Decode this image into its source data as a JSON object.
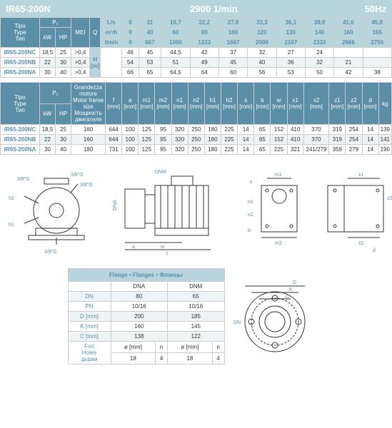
{
  "header": {
    "model": "IR65-200N",
    "rpm": "2900 1/min",
    "hz": "50Hz"
  },
  "table1": {
    "type_labels": [
      "Tipo",
      "Type",
      "Тип"
    ],
    "p2_label": "P₂",
    "kw_label": "kW",
    "hp_label": "HP",
    "mei_label": "MEI",
    "q_label": "Q",
    "ls_label": "L/s",
    "m3h_label": "m³/h",
    "lmin_label": "l/min",
    "hm_label": "H [m]",
    "ls_vals": [
      "0",
      "11",
      "16,7",
      "22,2",
      "27,8",
      "33,3",
      "36,1",
      "38,9",
      "41,6",
      "45,8"
    ],
    "m3h_vals": [
      "0",
      "40",
      "60",
      "80",
      "100",
      "120",
      "130",
      "140",
      "160",
      "165"
    ],
    "lmin_vals": [
      "0",
      "667",
      "1000",
      "1333",
      "1667",
      "2000",
      "2167",
      "2333",
      "2666",
      "2750"
    ],
    "rows": [
      {
        "m": "IR65-200NC",
        "kw": "18,5",
        "hp": "25",
        "mei": ">0,4",
        "v": [
          "46",
          "45",
          "44,5",
          "42",
          "37",
          "32",
          "27",
          "24",
          "",
          ""
        ]
      },
      {
        "m": "IR65-200NB",
        "kw": "22",
        "hp": "30",
        "mei": ">0,4",
        "v": [
          "54",
          "53",
          "51",
          "49",
          "45",
          "40",
          "36",
          "32",
          "21",
          ""
        ]
      },
      {
        "m": "IR65-200NA",
        "kw": "30",
        "hp": "40",
        "mei": ">0,4",
        "v": [
          "66",
          "65",
          "64,5",
          "64",
          "60",
          "56",
          "53",
          "50",
          "42",
          "38"
        ]
      }
    ]
  },
  "table2": {
    "type_labels": [
      "Tipo",
      "Type",
      "Тип"
    ],
    "p2_label": "P₂",
    "kw_label": "kW",
    "hp_label": "HP",
    "motor_labels": [
      "Grandezza motore",
      "Motor frame size",
      "Мощность двигателя"
    ],
    "cols": [
      "f",
      "a",
      "m1",
      "m2",
      "n1",
      "n2",
      "h1",
      "h2",
      "s",
      "b",
      "w",
      "x1",
      "x2",
      "z1",
      "z2",
      "d",
      "kg"
    ],
    "units": "[mm]",
    "rows": [
      {
        "m": "IR65-200NC",
        "kw": "18,5",
        "hp": "25",
        "mf": "160",
        "v": [
          "644",
          "100",
          "125",
          "95",
          "320",
          "250",
          "180",
          "225",
          "14",
          "65",
          "152",
          "410",
          "370",
          "319",
          "254",
          "14",
          "139"
        ]
      },
      {
        "m": "IR65-200NB",
        "kw": "22",
        "hp": "30",
        "mf": "160",
        "v": [
          "644",
          "100",
          "125",
          "95",
          "320",
          "250",
          "180",
          "225",
          "14",
          "65",
          "152",
          "410",
          "370",
          "319",
          "254",
          "14",
          "141"
        ]
      },
      {
        "m": "IR65-200NA",
        "kw": "30",
        "hp": "40",
        "mf": "180",
        "v": [
          "731",
          "100",
          "125",
          "95",
          "320",
          "250",
          "180",
          "225",
          "14",
          "65",
          "225",
          "321",
          "241/279",
          "359",
          "279",
          "14",
          "190"
        ]
      }
    ]
  },
  "diagrams": {
    "g38": "3/8\"G",
    "dnm": "DNM",
    "dna": "DNA",
    "h1": "h1",
    "h2": "h2",
    "a": "a",
    "w": "w",
    "f": "f",
    "b": "b",
    "s": "s",
    "m1": "m1",
    "m2": "m2",
    "n1": "n1",
    "n2": "n2",
    "x1": "x1",
    "x2": "x2",
    "z1": "z1",
    "z2": "z2",
    "d": "d"
  },
  "flange": {
    "title": "Flange • Flanges • Фланцы",
    "col1": "DNA",
    "col2": "DNM",
    "rows": [
      {
        "l": "DN",
        "a": "80",
        "b": "65"
      },
      {
        "l": "PN",
        "a": "10/16",
        "b": "10/16"
      },
      {
        "l": "D [mm]",
        "a": "200",
        "b": "185"
      },
      {
        "l": "K [mm]",
        "a": "160",
        "b": "145"
      },
      {
        "l": "C [mm]",
        "a": "138",
        "b": "122"
      }
    ],
    "holes_labels": [
      "Fori",
      "Holes",
      "дырки"
    ],
    "holes_cols": [
      "ø [mm]",
      "n",
      "ø [mm]",
      "n"
    ],
    "holes_vals": [
      "18",
      "4",
      "18",
      "4"
    ],
    "diag": {
      "D": "D",
      "K": "K",
      "C": "C",
      "DN": "DN"
    }
  }
}
